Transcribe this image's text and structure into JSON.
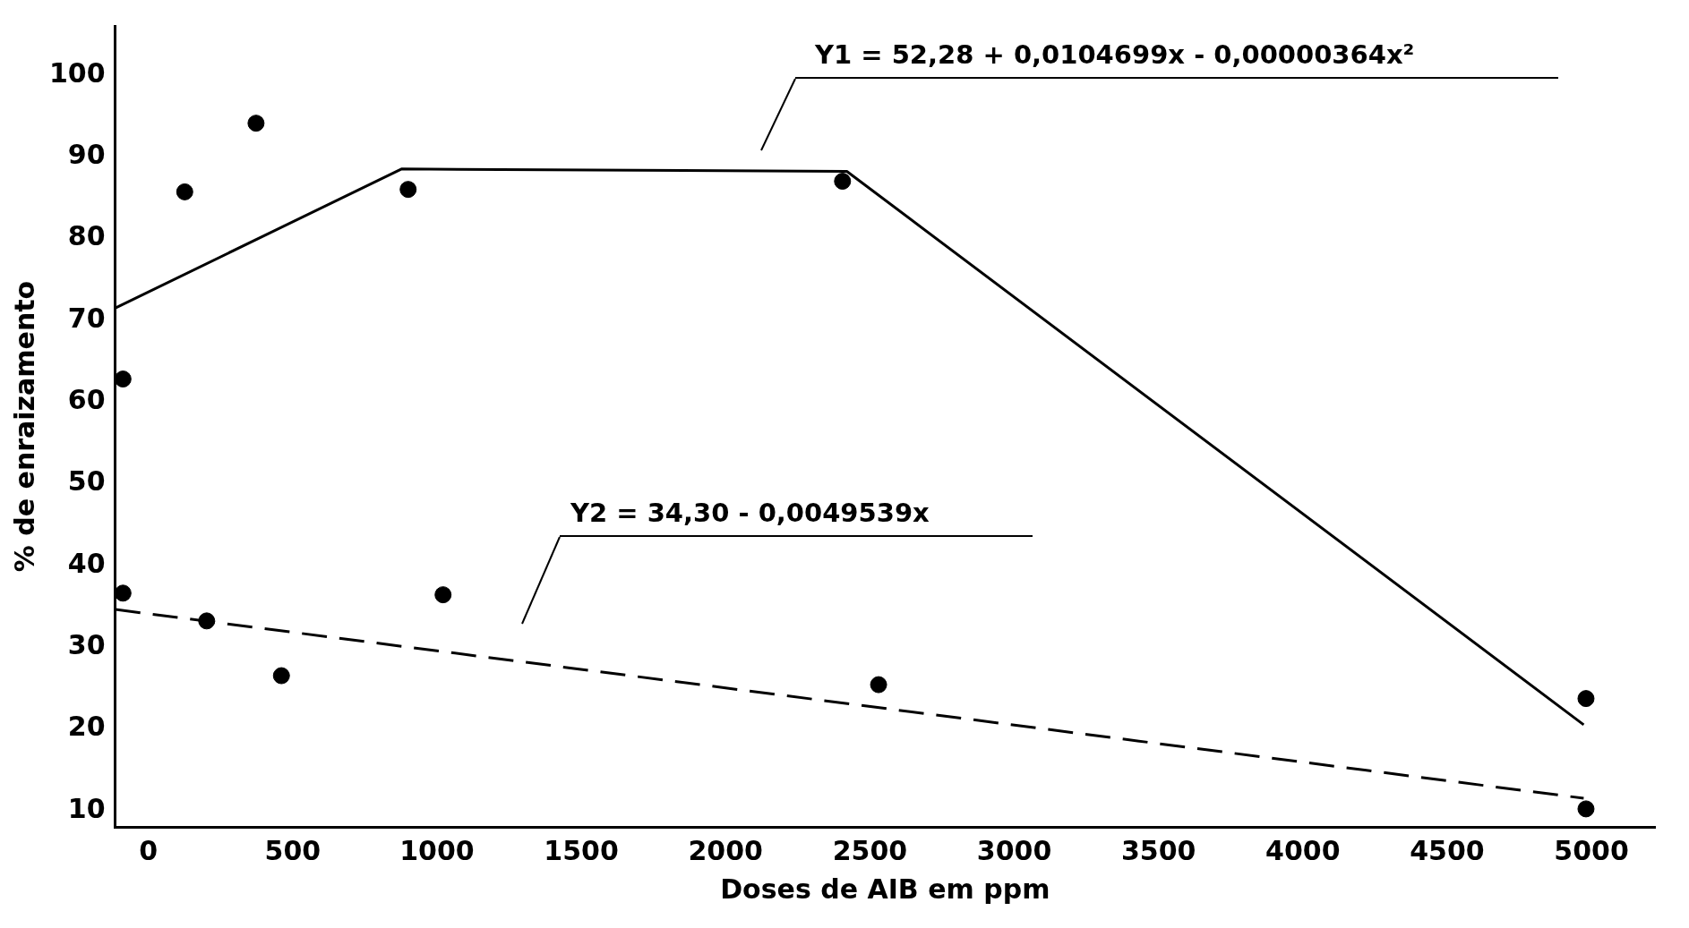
{
  "chart_data": {
    "type": "scatter",
    "xlabel": "Doses de AIB em ppm",
    "ylabel": "% de enraizamento",
    "series": [
      {
        "type": "scatter",
        "color": "#000000",
        "x": [
          -88,
          -88,
          126,
          373,
          202,
          461,
          900,
          1021,
          2405,
          2530,
          4981,
          4981
        ],
        "values": [
          62.8,
          36.6,
          85.7,
          94.1,
          33.2,
          26.5,
          86,
          36.4,
          87,
          25.4,
          23.7,
          10.2
        ]
      },
      {
        "type": "line",
        "color": "#000000",
        "marker": "none",
        "line_style": "solid",
        "x": [
          -114,
          877,
          2420,
          4973
        ],
        "values": [
          71.5,
          88.5,
          88.2,
          20.5
        ]
      },
      {
        "type": "line",
        "color": "#000000",
        "marker": "none",
        "line_style": "dashed",
        "x": [
          -114,
          4973
        ],
        "values": [
          34.6,
          11.5
        ]
      }
    ],
    "marker": "circle",
    "xlim": [
      -115,
      5220
    ],
    "xticks": [
      0,
      500,
      1000,
      1500,
      2000,
      2500,
      3000,
      3500,
      4000,
      4500,
      5000
    ],
    "ylim": [
      8,
      106
    ],
    "yticks": [
      10,
      20,
      30,
      40,
      50,
      60,
      70,
      80,
      90,
      100
    ],
    "grid": false,
    "legend": false,
    "annotations": [
      "Y1 = 52,28 + 0,0104699x - 0,00000364x²",
      "Y2 = 34,30 - 0,0049539x"
    ]
  }
}
